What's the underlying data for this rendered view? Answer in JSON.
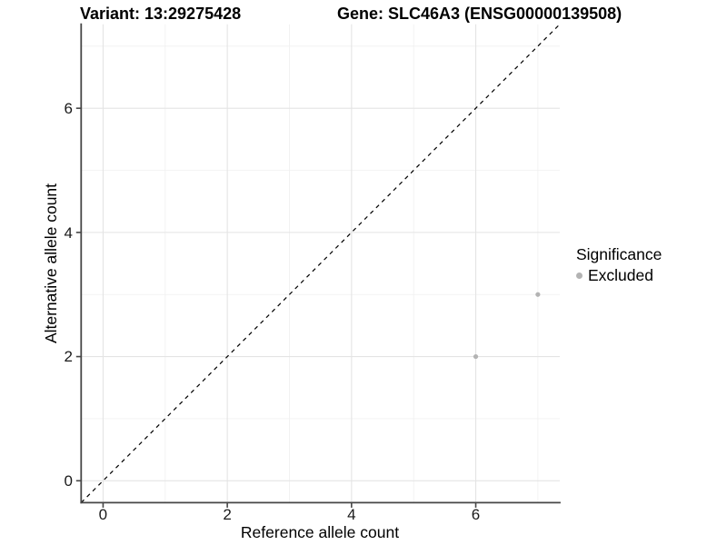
{
  "titles": {
    "left": "Variant: 13:29275428",
    "right": "Gene: SLC46A3 (ENSG00000139508)"
  },
  "legend": {
    "title": "Significance",
    "items": [
      {
        "label": "Excluded",
        "color": "#b3b3b3"
      }
    ]
  },
  "colors": {
    "point": "#b3b3b3",
    "grid_major": "#e4e4e4",
    "grid_minor": "#f0f0f0",
    "axis_line": "#464646",
    "reference_line": "#000000"
  },
  "chart_data": {
    "type": "scatter",
    "title_left": "Variant: 13:29275428",
    "title_right": "Gene: SLC46A3 (ENSG00000139508)",
    "xlabel": "Reference allele count",
    "ylabel": "Alternative allele count",
    "x_ticks": [
      0,
      2,
      4,
      6
    ],
    "y_ticks": [
      0,
      2,
      4,
      6
    ],
    "x_minor": [
      1,
      3,
      5,
      7
    ],
    "y_minor": [
      1,
      3,
      5,
      7
    ],
    "xlim": [
      -0.353,
      7.353
    ],
    "ylim": [
      -0.353,
      7.353
    ],
    "grid": true,
    "legend_position": "right",
    "series": [
      {
        "name": "Excluded",
        "color": "#b3b3b3",
        "points": [
          {
            "x": 6,
            "y": 2
          },
          {
            "x": 7,
            "y": 3
          }
        ]
      }
    ],
    "reference_line": {
      "type": "identity",
      "slope": 1,
      "intercept": 0,
      "style": "dashed"
    }
  }
}
